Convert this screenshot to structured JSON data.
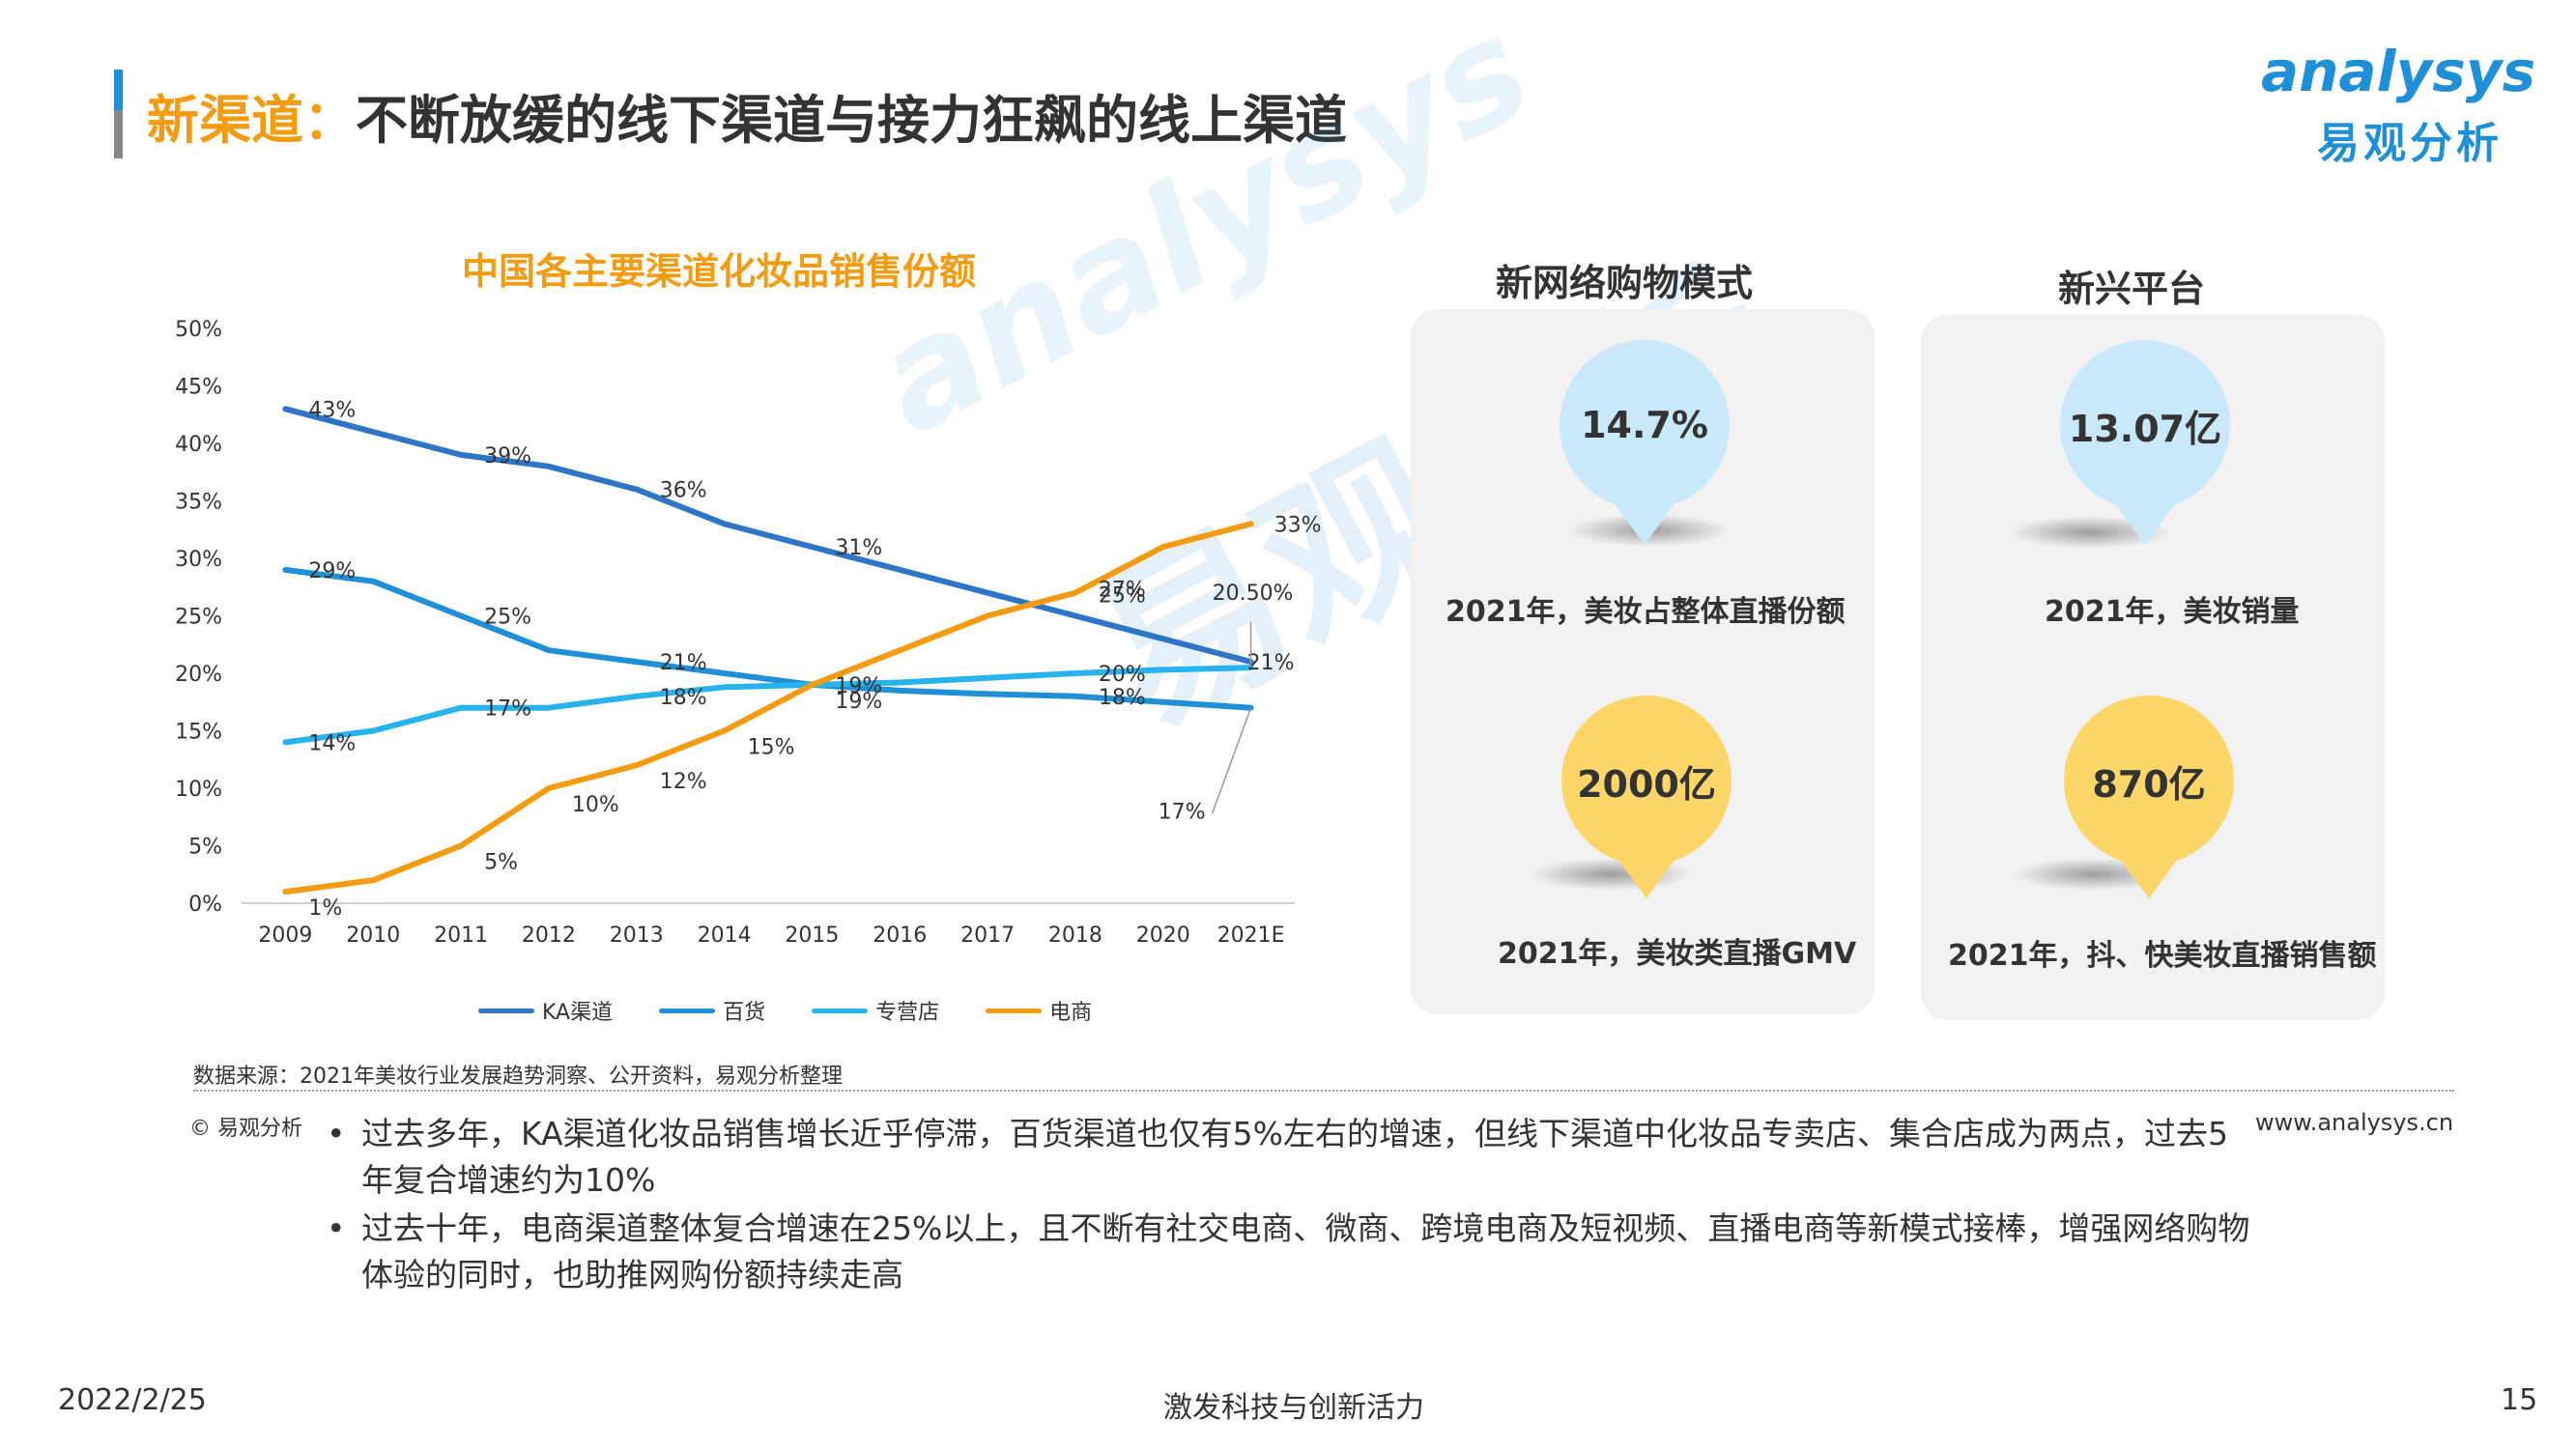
{
  "header": {
    "title_highlight": "新渠道：",
    "title_rest": "不断放缓的线下渠道与接力狂飙的线上渠道",
    "logo_en": "analysys",
    "logo_cn": "易观分析"
  },
  "watermark": {
    "en": "analysys",
    "cn": "易观分析"
  },
  "colors": {
    "accent_orange": "#f39c12",
    "brand_blue": "#1f8fd8",
    "ka": "#2e75c8",
    "baihuo": "#1f8fd8",
    "zhuanying": "#26b3ee",
    "dianshang": "#f39c12",
    "pin_blue": "#c9e9fb",
    "pin_yellow": "#fdd66a"
  },
  "chart_data": {
    "type": "line",
    "title": "中国各主要渠道化妆品销售份额",
    "categories": [
      "2009",
      "2010",
      "2011",
      "2012",
      "2013",
      "2014",
      "2015",
      "2016",
      "2017",
      "2018",
      "2020",
      "2021E"
    ],
    "ylim": [
      0,
      50
    ],
    "y_ticks": [
      "0%",
      "5%",
      "10%",
      "15%",
      "20%",
      "25%",
      "30%",
      "35%",
      "40%",
      "45%",
      "50%"
    ],
    "series": [
      {
        "name": "KA渠道",
        "values": [
          43,
          41,
          39,
          38,
          36,
          33,
          31,
          29,
          27,
          25,
          23,
          21
        ],
        "labels": [
          "43%",
          "",
          "39%",
          "",
          "36%",
          "",
          "31%",
          "",
          "",
          "25%",
          "",
          ""
        ]
      },
      {
        "name": "百货",
        "values": [
          29,
          28,
          25,
          22,
          21,
          20,
          19,
          18.5,
          18.2,
          18,
          17.5,
          17
        ],
        "labels": [
          "29%",
          "",
          "25%",
          "",
          "21%",
          "",
          "",
          "",
          "",
          "18%",
          "",
          "17%"
        ]
      },
      {
        "name": "专营店",
        "values": [
          14,
          15,
          17,
          17,
          18,
          18.8,
          19,
          19.2,
          19.6,
          20,
          20.3,
          20.5
        ],
        "labels": [
          "14%",
          "",
          "17%",
          "",
          "18%",
          "",
          "19%",
          "",
          "",
          "20%",
          "",
          "20.50%"
        ]
      },
      {
        "name": "电商",
        "values": [
          1,
          2,
          5,
          10,
          12,
          15,
          19,
          22,
          25,
          27,
          31,
          33
        ],
        "labels": [
          "1%",
          "",
          "5%",
          "10%",
          "12%",
          "15%",
          "19%",
          "",
          "",
          "27%",
          "",
          "33%"
        ]
      }
    ],
    "extra_label_21": "21%",
    "legend_position": "bottom"
  },
  "panels": [
    {
      "title": "新网络购物模式",
      "items": [
        {
          "value": "14.7%",
          "caption": "2021年，美妆占整体直播份额",
          "color": "blue"
        },
        {
          "value": "2000亿",
          "caption": "2021年，美妆类直播GMV",
          "color": "yellow"
        }
      ]
    },
    {
      "title": "新兴平台",
      "items": [
        {
          "value": "13.07亿",
          "caption": "2021年，美妆销量",
          "color": "blue"
        },
        {
          "value": "870亿",
          "caption": "2021年，抖、快美妆直播销售额",
          "color": "yellow"
        }
      ]
    }
  ],
  "source": "数据来源：2021年美妆行业发展趋势洞察、公开资料，易观分析整理",
  "copyright": "© 易观分析",
  "website": "www.analysys.cn",
  "bullets": [
    "过去多年，KA渠道化妆品销售增长近乎停滞，百货渠道也仅有5%左右的增速，但线下渠道中化妆品专卖店、集合店成为两点，过去5年复合增速约为10%",
    "过去十年，电商渠道整体复合增速在25%以上，且不断有社交电商、微商、跨境电商及短视频、直播电商等新模式接棒，增强网络购物体验的同时，也助推网购份额持续走高"
  ],
  "footer": {
    "date": "2022/2/25",
    "center": "激发科技与创新活力",
    "page": "15"
  }
}
